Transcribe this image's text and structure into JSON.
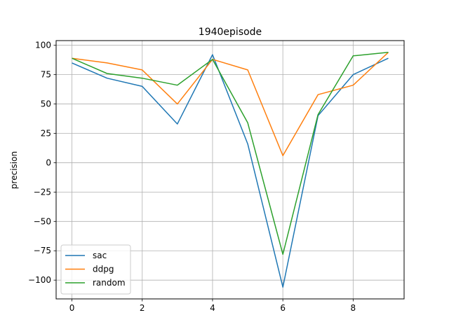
{
  "chart_data": {
    "type": "line",
    "title": "1940episode",
    "xlabel": "",
    "ylabel": "precision",
    "x": [
      0,
      1,
      2,
      3,
      4,
      5,
      6,
      7,
      8,
      9
    ],
    "xlim": [
      -0.45,
      9.45
    ],
    "ylim": [
      -116,
      104
    ],
    "xticks": [
      0,
      2,
      4,
      6,
      8
    ],
    "yticks": [
      100,
      75,
      50,
      25,
      0,
      -25,
      -50,
      -75,
      -100
    ],
    "ytick_labels": [
      "100",
      "75",
      "50",
      "25",
      "0",
      "−25",
      "−50",
      "−75",
      "−100"
    ],
    "grid": true,
    "legend_position": "lower-left",
    "series": [
      {
        "name": "sac",
        "color": "#1f77b4",
        "values": [
          85,
          72,
          65,
          33,
          92,
          16,
          -106,
          40,
          75,
          89
        ]
      },
      {
        "name": "ddpg",
        "color": "#ff7f0e",
        "values": [
          89,
          85,
          79,
          50,
          88,
          79,
          6,
          58,
          66,
          94
        ]
      },
      {
        "name": "random",
        "color": "#2ca02c",
        "values": [
          89,
          76,
          72,
          66,
          88,
          34,
          -78,
          41,
          91,
          94
        ]
      }
    ]
  }
}
